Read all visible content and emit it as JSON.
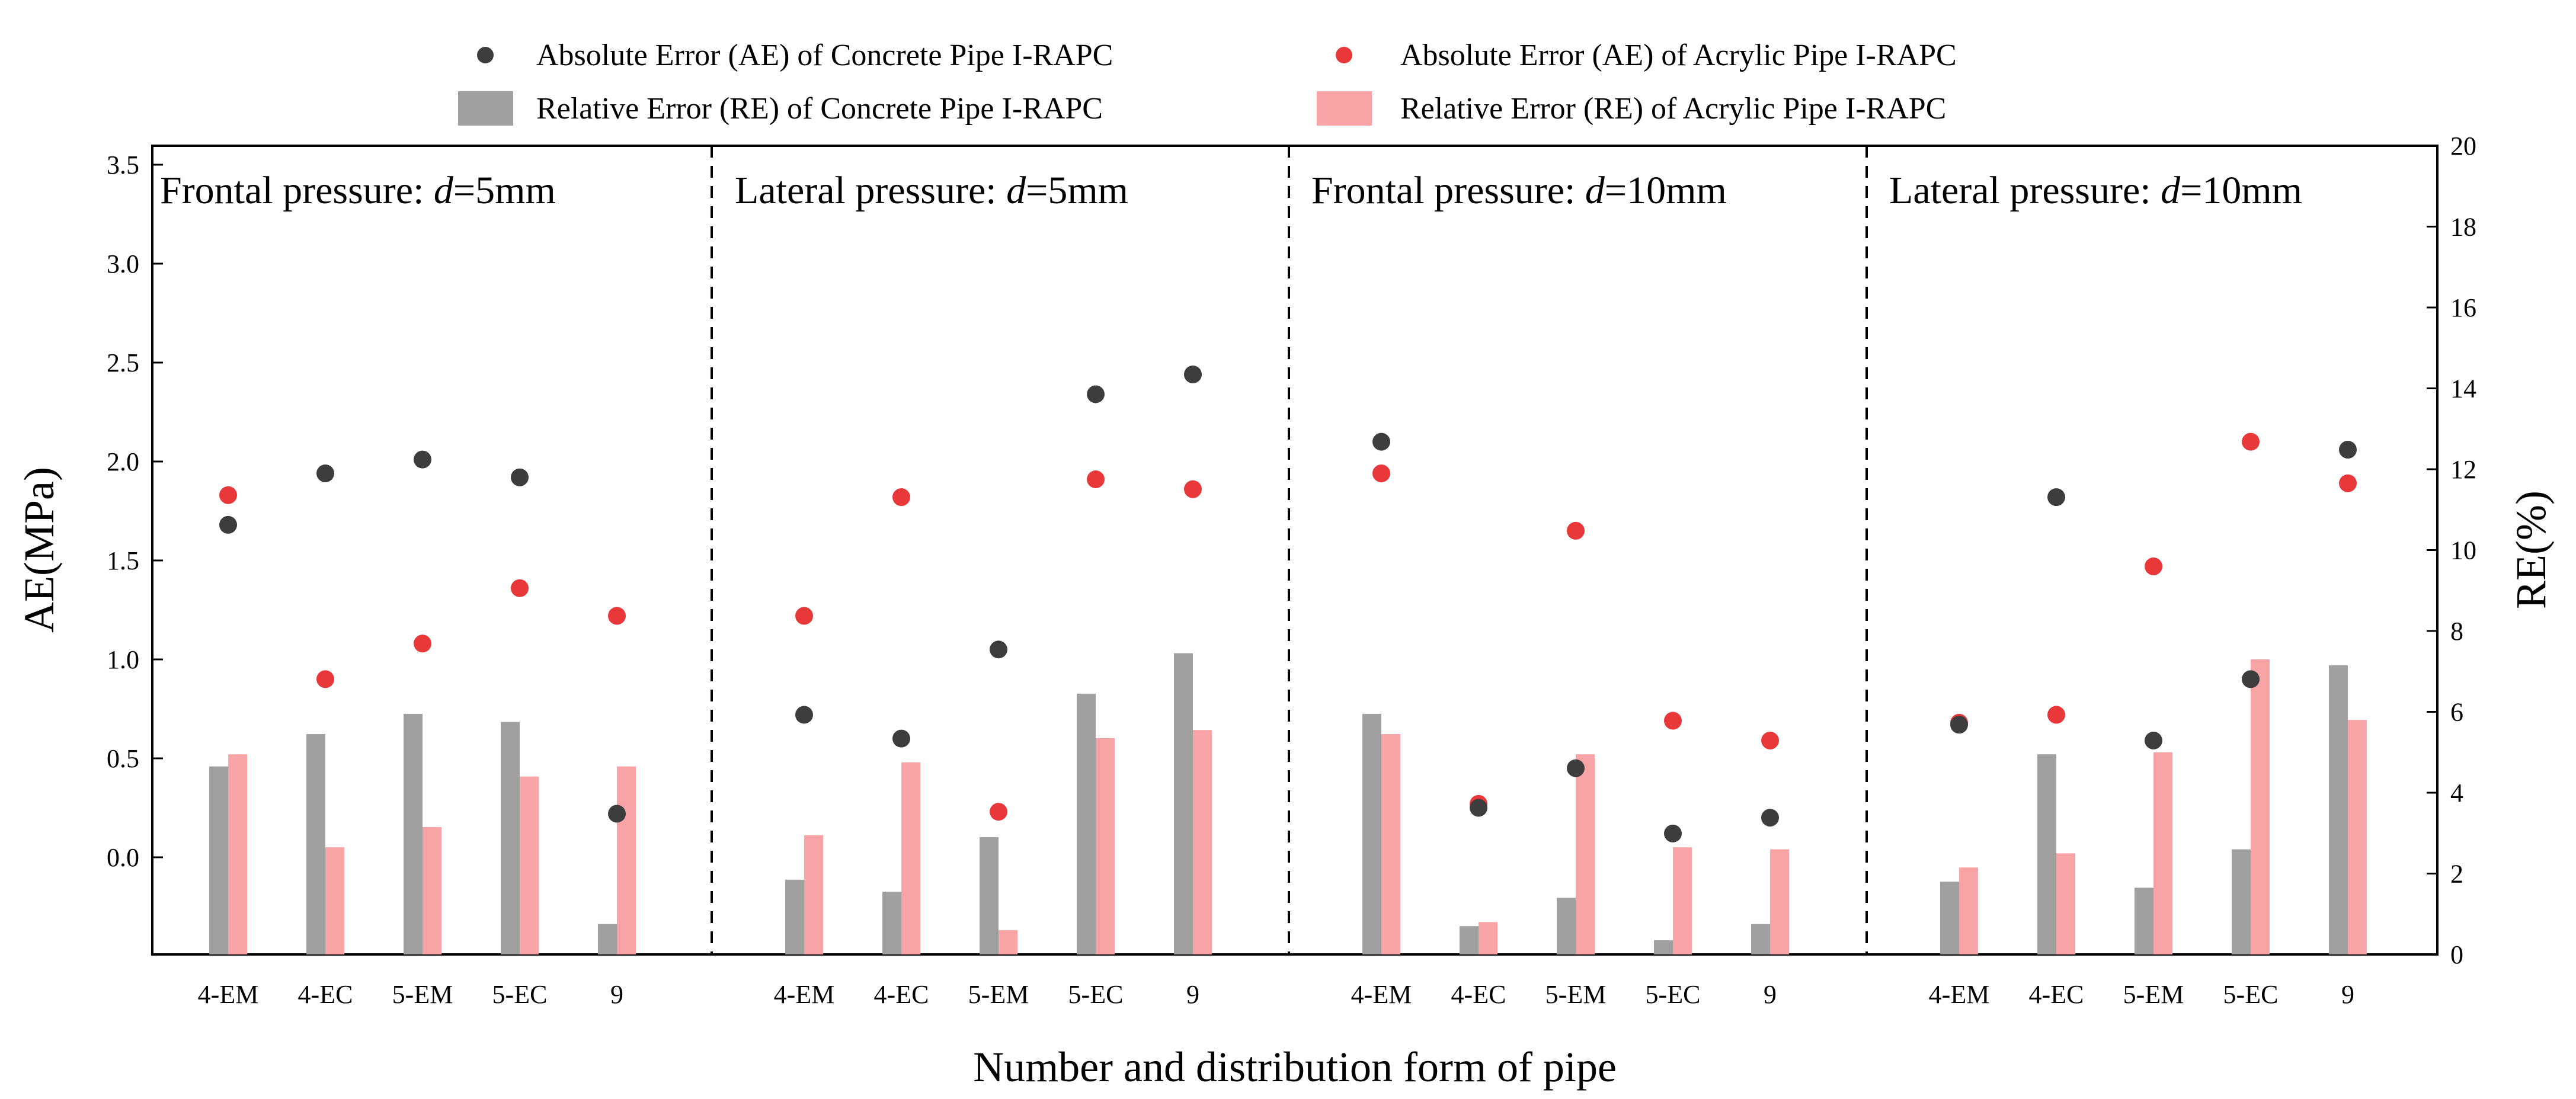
{
  "chart_data": {
    "type": "bar+scatter",
    "xlabel": "Number and distribution form of pipe",
    "ylabel_left": "AE(MPa)",
    "ylabel_right": "RE(%)",
    "left_ticks": [
      "0.0",
      "0.5",
      "1.0",
      "1.5",
      "2.0",
      "2.5",
      "3.0",
      "3.5"
    ],
    "right_ticks": [
      "0",
      "2",
      "4",
      "6",
      "8",
      "10",
      "12",
      "14",
      "16",
      "18",
      "20"
    ],
    "ylim_right": [
      0,
      20
    ],
    "categories": [
      "4-EM",
      "4-EC",
      "5-EM",
      "5-EC",
      "9"
    ],
    "legend": {
      "ae_concrete": "Absolute Error (AE) of Concrete Pipe I-RAPC",
      "ae_acrylic": "Absolute Error (AE) of Acrylic Pipe I-RAPC",
      "re_concrete": "Relative Error (RE) of Concrete Pipe I-RAPC",
      "re_acrylic": "Relative Error (RE) of Acrylic Pipe I-RAPC"
    },
    "colors": {
      "ae_concrete": "#3d3d3d",
      "ae_acrylic": "#e8383a",
      "re_concrete": "#a0a0a0",
      "re_acrylic": "#f8a3a6"
    },
    "panels": [
      {
        "title_prefix": "Frontal pressure: ",
        "title_var": "d",
        "title_suffix": "=5mm",
        "ae_concrete": [
          1.68,
          1.94,
          2.01,
          1.92,
          0.22
        ],
        "ae_acrylic": [
          1.83,
          0.9,
          1.08,
          1.36,
          1.22
        ],
        "re_concrete": [
          4.65,
          5.45,
          5.95,
          5.75,
          0.75
        ],
        "re_acrylic": [
          4.95,
          2.65,
          3.15,
          4.4,
          4.65
        ]
      },
      {
        "title_prefix": "Lateral pressure: ",
        "title_var": "d",
        "title_suffix": "=5mm",
        "ae_concrete": [
          0.72,
          0.6,
          1.05,
          2.34,
          2.44
        ],
        "ae_acrylic": [
          1.22,
          1.82,
          0.23,
          1.91,
          1.86
        ],
        "re_concrete": [
          1.85,
          1.55,
          2.9,
          6.45,
          7.45
        ],
        "re_acrylic": [
          2.95,
          4.75,
          0.6,
          5.35,
          5.55
        ]
      },
      {
        "title_prefix": "Frontal pressure: ",
        "title_var": "d",
        "title_suffix": "=10mm",
        "ae_concrete": [
          2.1,
          0.25,
          0.45,
          0.12,
          0.2
        ],
        "ae_acrylic": [
          1.94,
          0.27,
          1.65,
          0.69,
          0.59
        ],
        "re_concrete": [
          5.95,
          0.7,
          1.4,
          0.35,
          0.75
        ],
        "re_acrylic": [
          5.45,
          0.8,
          4.95,
          2.65,
          2.6
        ]
      },
      {
        "title_prefix": "Lateral pressure: ",
        "title_var": "d",
        "title_suffix": "=10mm",
        "ae_concrete": [
          0.67,
          1.82,
          0.59,
          0.9,
          2.06
        ],
        "ae_acrylic": [
          0.68,
          0.72,
          1.47,
          2.1,
          1.89
        ],
        "re_concrete": [
          1.8,
          4.95,
          1.65,
          2.6,
          7.15
        ],
        "re_acrylic": [
          2.15,
          2.5,
          5.0,
          7.3,
          5.8
        ]
      }
    ]
  }
}
